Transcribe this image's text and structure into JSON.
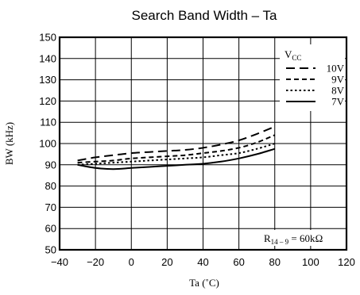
{
  "chart_data": {
    "type": "line",
    "title": "Search Band Width – Ta",
    "xlabel": "Ta (˚C)",
    "ylabel": "BW (kHz)",
    "xlim": [
      -40,
      120
    ],
    "ylim": [
      50,
      150
    ],
    "xticks": [
      "−40",
      "−20",
      "0",
      "20",
      "40",
      "60",
      "80",
      "100",
      "120"
    ],
    "yticks": [
      "50",
      "60",
      "70",
      "80",
      "90",
      "100",
      "110",
      "120",
      "130",
      "140",
      "150"
    ],
    "grid": true,
    "legend": {
      "title": "V",
      "title_sub": "CC",
      "placement": "top-right"
    },
    "annotation": {
      "prefix": "R",
      "sub": "14 – 9",
      "suffix": " = 60kΩ"
    },
    "series": [
      {
        "name": "10V",
        "style": "long-dash",
        "x": [
          -30,
          -20,
          -10,
          0,
          10,
          20,
          30,
          40,
          50,
          60,
          70,
          80
        ],
        "y": [
          92,
          93.5,
          94.5,
          95.5,
          96,
          96.5,
          97,
          98,
          99.5,
          101.5,
          104.5,
          108
        ]
      },
      {
        "name": "9V",
        "style": "short-dash",
        "x": [
          -30,
          -20,
          -10,
          0,
          10,
          20,
          30,
          40,
          50,
          60,
          70,
          80
        ],
        "y": [
          91,
          91.5,
          92,
          93,
          93.5,
          94,
          94.5,
          95.5,
          96.5,
          98,
          100.5,
          104
        ]
      },
      {
        "name": "8V",
        "style": "dotted",
        "x": [
          -30,
          -20,
          -10,
          0,
          10,
          20,
          30,
          40,
          50,
          60,
          70,
          80
        ],
        "y": [
          90,
          90.5,
          91,
          91.5,
          92,
          92.5,
          93,
          93.5,
          94.5,
          95.5,
          97.5,
          100
        ]
      },
      {
        "name": "7V",
        "style": "solid",
        "x": [
          -30,
          -20,
          -10,
          0,
          10,
          20,
          30,
          40,
          50,
          60,
          70,
          80
        ],
        "y": [
          90,
          88.5,
          88,
          88.5,
          89,
          89.5,
          90,
          90.5,
          91.5,
          93,
          95,
          97.5
        ]
      }
    ]
  }
}
